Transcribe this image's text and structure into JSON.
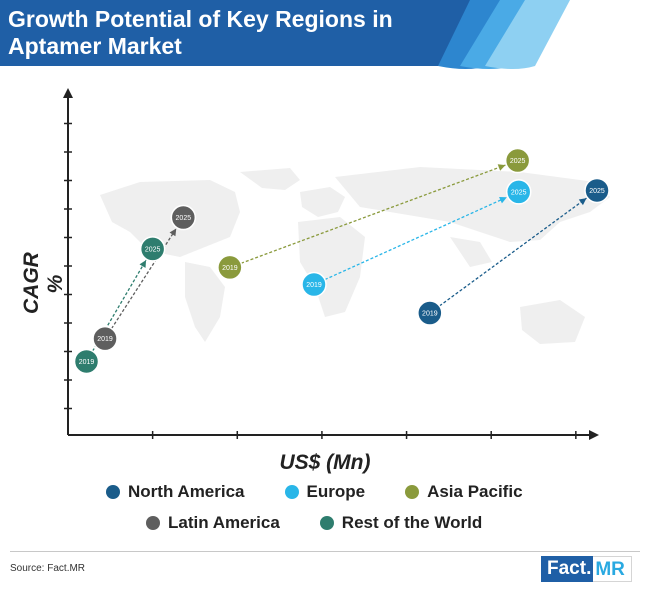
{
  "header": {
    "title": "Growth Potential of Key Regions in Aptamer Market"
  },
  "chart_data": {
    "type": "scatter",
    "title": "Growth Potential of Key Regions in Aptamer Market",
    "xlabel": "US$ (Mn)",
    "ylabel": "CAGR %",
    "xlim": [
      0,
      10
    ],
    "ylim": [
      0,
      12
    ],
    "grid": false,
    "legend_position": "bottom",
    "series": [
      {
        "name": "North America",
        "color": "#1a5c8a",
        "points": [
          {
            "label": "2019",
            "x": 6.84,
            "y": 4.35
          },
          {
            "label": "2025",
            "x": 10.0,
            "y": 8.65
          }
        ]
      },
      {
        "name": "Europe",
        "color": "#29b6e8",
        "points": [
          {
            "label": "2019",
            "x": 4.65,
            "y": 5.35
          },
          {
            "label": "2025",
            "x": 8.52,
            "y": 8.6
          }
        ]
      },
      {
        "name": "Asia Pacific",
        "color": "#8a9a3c",
        "points": [
          {
            "label": "2019",
            "x": 3.06,
            "y": 5.95
          },
          {
            "label": "2025",
            "x": 8.5,
            "y": 9.7
          }
        ]
      },
      {
        "name": "Latin America",
        "color": "#5e5e5e",
        "points": [
          {
            "label": "2019",
            "x": 0.7,
            "y": 3.45
          },
          {
            "label": "2025",
            "x": 2.18,
            "y": 7.7
          }
        ]
      },
      {
        "name": "Rest of the World",
        "color": "#2e7d6e",
        "points": [
          {
            "label": "2019",
            "x": 0.35,
            "y": 2.65
          },
          {
            "label": "2025",
            "x": 1.6,
            "y": 6.6
          }
        ]
      }
    ]
  },
  "legend": {
    "row1": [
      {
        "name": "North America",
        "color": "#1a5c8a"
      },
      {
        "name": "Europe",
        "color": "#29b6e8"
      },
      {
        "name": "Asia Pacific",
        "color": "#8a9a3c"
      }
    ],
    "row2": [
      {
        "name": "Latin America",
        "color": "#5e5e5e"
      },
      {
        "name": "Rest of the World",
        "color": "#2e7d6e"
      }
    ]
  },
  "footer": {
    "source": "Source: Fact.MR",
    "logo_part1": "Fact.",
    "logo_part2": "MR"
  }
}
